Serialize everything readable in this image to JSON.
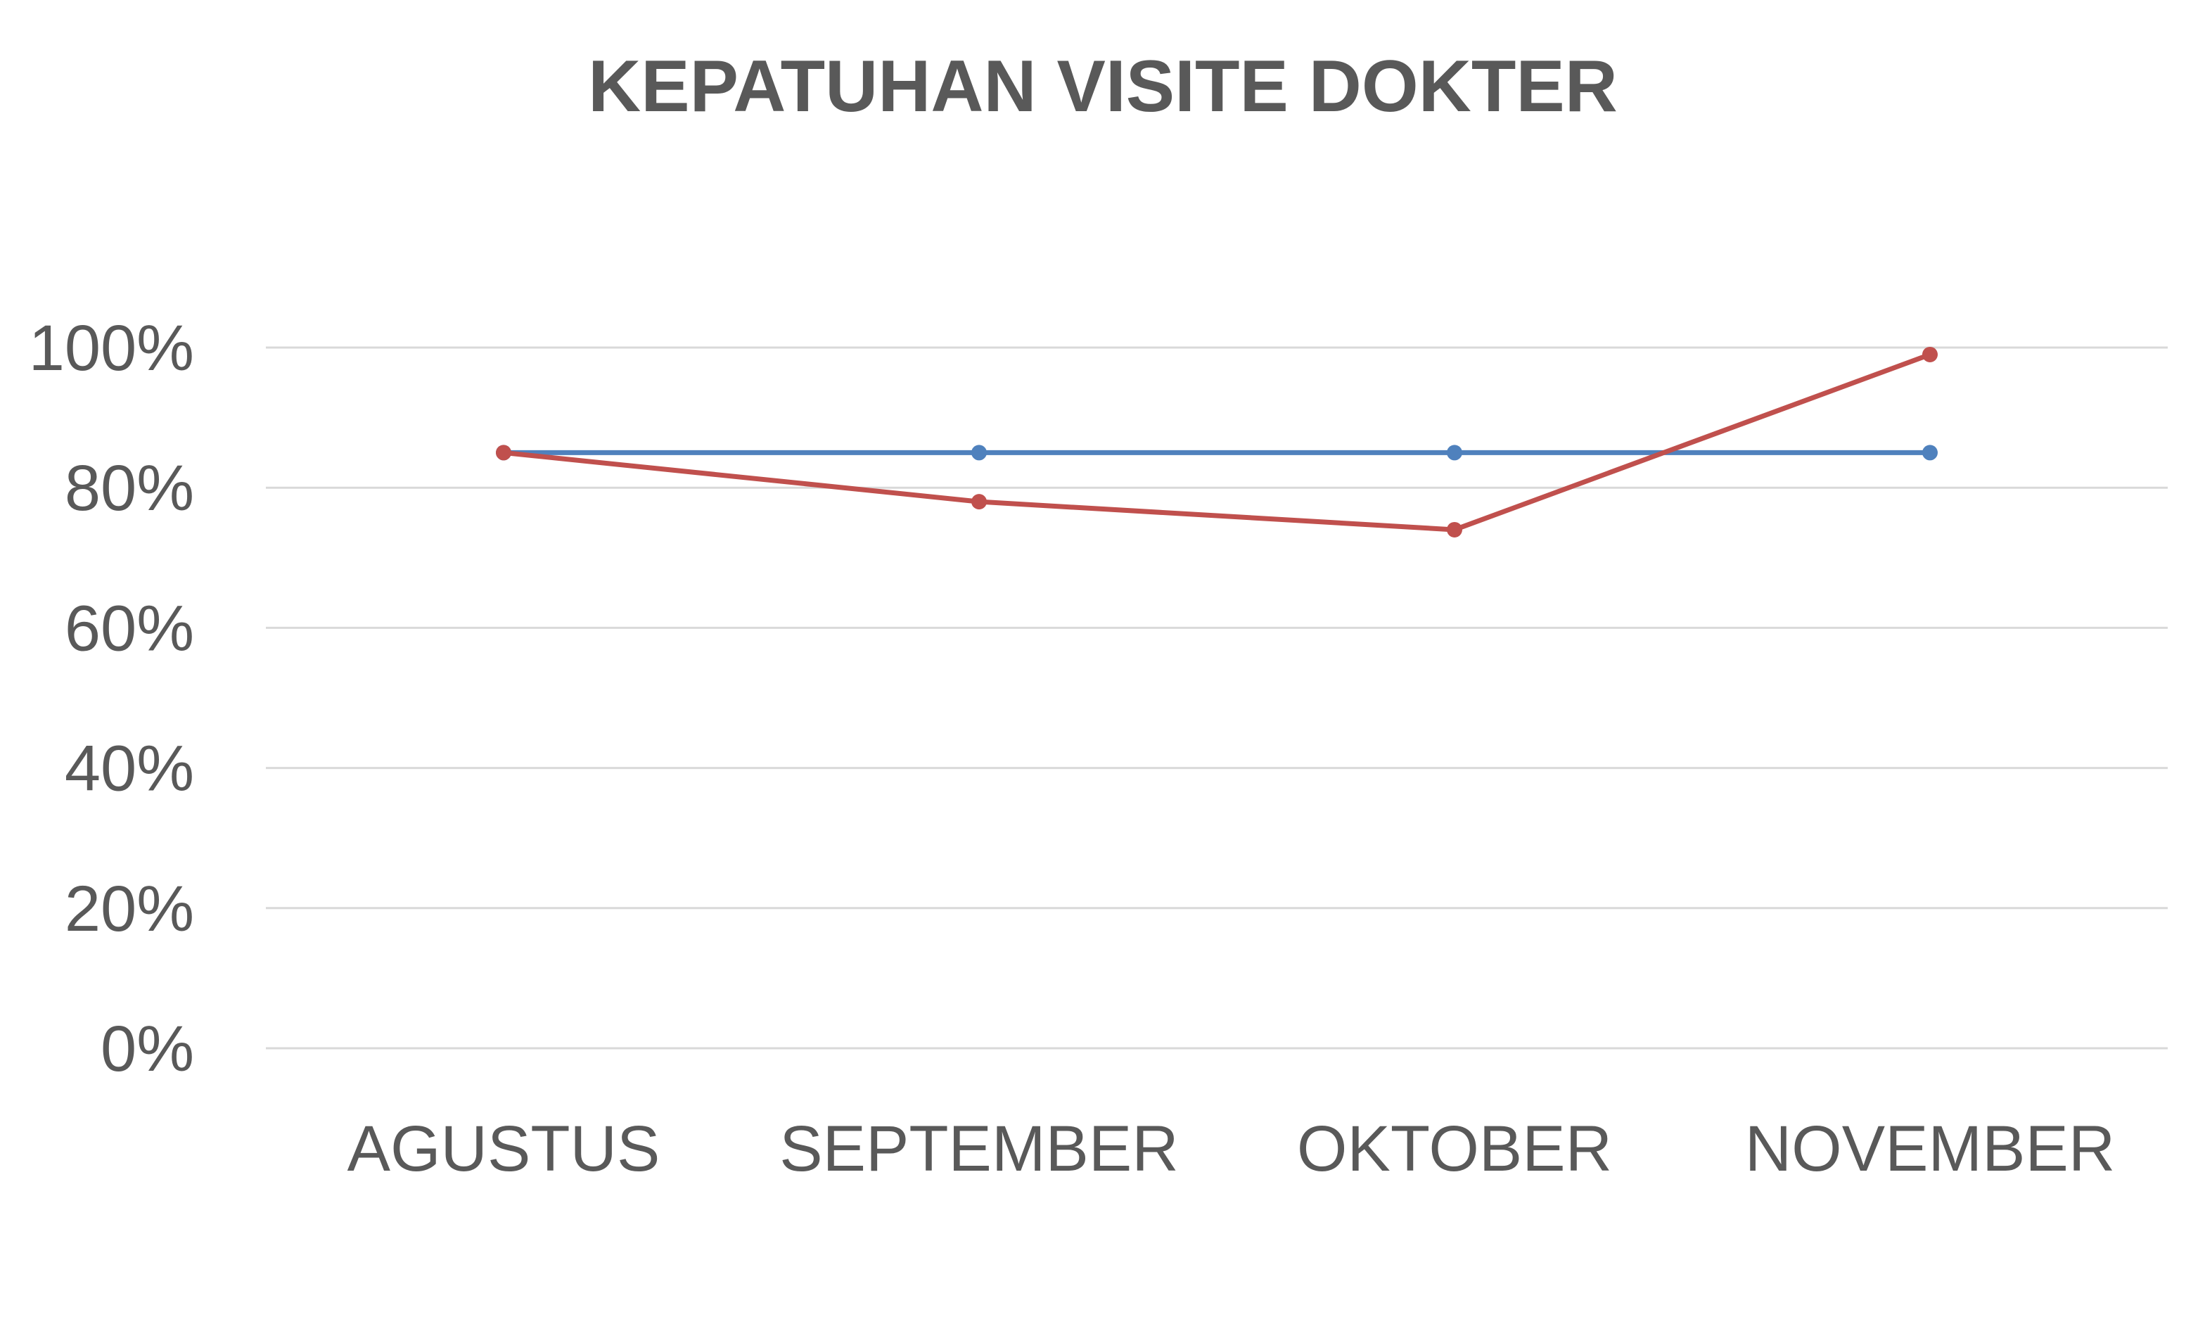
{
  "chart_data": {
    "type": "line",
    "title": "KEPATUHAN VISITE DOKTER",
    "xlabel": "",
    "ylabel": "",
    "categories": [
      "AGUSTUS",
      "SEPTEMBER",
      "OKTOBER",
      "NOVEMBER"
    ],
    "yticks": [
      "0%",
      "20%",
      "40%",
      "60%",
      "80%",
      "100%"
    ],
    "ylim": [
      0,
      100
    ],
    "grid": true,
    "legend": "none",
    "series": [
      {
        "color": "#4f81bd",
        "values": [
          85,
          85,
          85,
          85
        ]
      },
      {
        "color": "#c0504d",
        "values": [
          85,
          78,
          74,
          99
        ]
      }
    ]
  }
}
